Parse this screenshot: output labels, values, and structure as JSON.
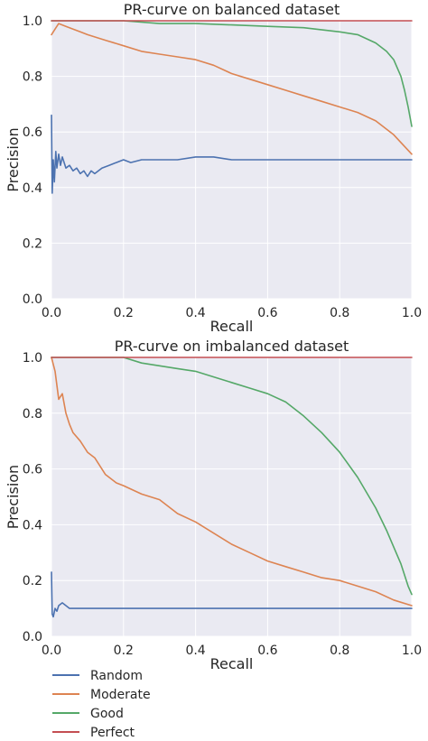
{
  "chart_data": [
    {
      "type": "line",
      "title": "PR-curve on balanced dataset",
      "xlabel": "Recall",
      "ylabel": "Precision",
      "xlim": [
        0,
        1
      ],
      "ylim": [
        0,
        1
      ],
      "xticks": [
        "0.0",
        "0.2",
        "0.4",
        "0.6",
        "0.8",
        "1.0"
      ],
      "yticks": [
        "0.0",
        "0.2",
        "0.4",
        "0.6",
        "0.8",
        "1.0"
      ],
      "grid": true,
      "series": [
        {
          "name": "Random",
          "color": "#4c72b0",
          "x": [
            0,
            0.002,
            0.005,
            0.008,
            0.012,
            0.015,
            0.02,
            0.025,
            0.03,
            0.04,
            0.05,
            0.06,
            0.07,
            0.08,
            0.09,
            0.1,
            0.11,
            0.12,
            0.14,
            0.16,
            0.18,
            0.2,
            0.22,
            0.25,
            0.3,
            0.35,
            0.4,
            0.45,
            0.5,
            0.6,
            0.7,
            0.8,
            0.9,
            1.0
          ],
          "y": [
            0.66,
            0.38,
            0.5,
            0.42,
            0.53,
            0.47,
            0.52,
            0.48,
            0.51,
            0.47,
            0.48,
            0.46,
            0.47,
            0.45,
            0.46,
            0.44,
            0.46,
            0.45,
            0.47,
            0.48,
            0.49,
            0.5,
            0.49,
            0.5,
            0.5,
            0.5,
            0.51,
            0.51,
            0.5,
            0.5,
            0.5,
            0.5,
            0.5,
            0.5
          ]
        },
        {
          "name": "Moderate",
          "color": "#dd8452",
          "x": [
            0,
            0.01,
            0.02,
            0.04,
            0.06,
            0.08,
            0.1,
            0.15,
            0.2,
            0.25,
            0.3,
            0.35,
            0.4,
            0.45,
            0.5,
            0.55,
            0.6,
            0.65,
            0.7,
            0.75,
            0.8,
            0.85,
            0.9,
            0.95,
            1.0
          ],
          "y": [
            0.95,
            0.97,
            0.99,
            0.98,
            0.97,
            0.96,
            0.95,
            0.93,
            0.91,
            0.89,
            0.88,
            0.87,
            0.86,
            0.84,
            0.81,
            0.79,
            0.77,
            0.75,
            0.73,
            0.71,
            0.69,
            0.67,
            0.64,
            0.59,
            0.52
          ]
        },
        {
          "name": "Good",
          "color": "#55a868",
          "x": [
            0,
            0.1,
            0.2,
            0.3,
            0.4,
            0.5,
            0.6,
            0.7,
            0.8,
            0.85,
            0.9,
            0.93,
            0.95,
            0.97,
            0.98,
            0.99,
            1.0
          ],
          "y": [
            1.0,
            1.0,
            1.0,
            0.99,
            0.99,
            0.985,
            0.98,
            0.975,
            0.96,
            0.95,
            0.92,
            0.89,
            0.86,
            0.8,
            0.75,
            0.69,
            0.62
          ]
        },
        {
          "name": "Perfect",
          "color": "#c44e52",
          "x": [
            0,
            1.0
          ],
          "y": [
            1.0,
            1.0
          ]
        }
      ]
    },
    {
      "type": "line",
      "title": "PR-curve on imbalanced dataset",
      "xlabel": "Recall",
      "ylabel": "Precision",
      "xlim": [
        0,
        1
      ],
      "ylim": [
        0,
        1
      ],
      "xticks": [
        "0.0",
        "0.2",
        "0.4",
        "0.6",
        "0.8",
        "1.0"
      ],
      "yticks": [
        "0.0",
        "0.2",
        "0.4",
        "0.6",
        "0.8",
        "1.0"
      ],
      "grid": true,
      "series": [
        {
          "name": "Random",
          "color": "#4c72b0",
          "x": [
            0,
            0.002,
            0.005,
            0.01,
            0.015,
            0.02,
            0.03,
            0.04,
            0.05,
            0.06,
            0.08,
            0.1,
            0.12,
            0.15,
            0.2,
            0.3,
            0.4,
            0.5,
            0.6,
            0.7,
            0.8,
            0.9,
            1.0
          ],
          "y": [
            0.23,
            0.08,
            0.07,
            0.1,
            0.09,
            0.11,
            0.12,
            0.11,
            0.1,
            0.1,
            0.1,
            0.1,
            0.1,
            0.1,
            0.1,
            0.1,
            0.1,
            0.1,
            0.1,
            0.1,
            0.1,
            0.1,
            0.1
          ]
        },
        {
          "name": "Moderate",
          "color": "#dd8452",
          "x": [
            0,
            0.01,
            0.02,
            0.03,
            0.04,
            0.05,
            0.06,
            0.08,
            0.1,
            0.12,
            0.15,
            0.18,
            0.2,
            0.25,
            0.3,
            0.35,
            0.4,
            0.45,
            0.5,
            0.55,
            0.6,
            0.65,
            0.7,
            0.75,
            0.8,
            0.85,
            0.9,
            0.95,
            1.0
          ],
          "y": [
            1.0,
            0.95,
            0.85,
            0.87,
            0.8,
            0.76,
            0.73,
            0.7,
            0.66,
            0.64,
            0.58,
            0.55,
            0.54,
            0.51,
            0.49,
            0.44,
            0.41,
            0.37,
            0.33,
            0.3,
            0.27,
            0.25,
            0.23,
            0.21,
            0.2,
            0.18,
            0.16,
            0.13,
            0.11
          ]
        },
        {
          "name": "Good",
          "color": "#55a868",
          "x": [
            0,
            0.2,
            0.25,
            0.3,
            0.35,
            0.4,
            0.45,
            0.5,
            0.55,
            0.6,
            0.65,
            0.7,
            0.75,
            0.8,
            0.85,
            0.9,
            0.93,
            0.95,
            0.97,
            0.99,
            1.0
          ],
          "y": [
            1.0,
            1.0,
            0.98,
            0.97,
            0.96,
            0.95,
            0.93,
            0.91,
            0.89,
            0.87,
            0.84,
            0.79,
            0.73,
            0.66,
            0.57,
            0.46,
            0.38,
            0.32,
            0.26,
            0.18,
            0.15
          ]
        },
        {
          "name": "Perfect",
          "color": "#c44e52",
          "x": [
            0,
            1.0
          ],
          "y": [
            1.0,
            1.0
          ]
        }
      ]
    }
  ],
  "legend": {
    "placement": "bottom-left",
    "entries": [
      {
        "label": "Random",
        "color": "#4c72b0"
      },
      {
        "label": "Moderate",
        "color": "#dd8452"
      },
      {
        "label": "Good",
        "color": "#55a868"
      },
      {
        "label": "Perfect",
        "color": "#c44e52"
      }
    ]
  },
  "style": {
    "plot_background": "#eaeaf2",
    "grid_color": "#ffffff",
    "text_color": "#262626"
  }
}
